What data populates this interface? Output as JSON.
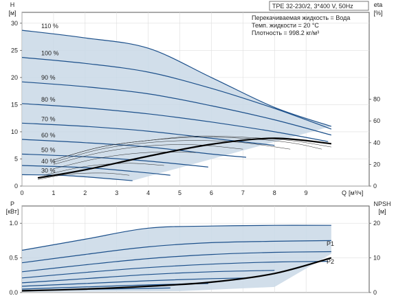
{
  "chart_data": [
    {
      "type": "line",
      "title": "TPE 32-230/2, 3*400 V, 50Hz",
      "info_lines": [
        "Перекачиваемая жидкость = Вода",
        "Темп. жидкости = 20 °C",
        "Плотность = 998.2 кг/м³"
      ],
      "ylabel": "H",
      "yunit": "[м]",
      "y2label": "eta",
      "y2unit": "[%]",
      "xlabel": "Q",
      "xunit": "[м³/ч]",
      "xlim": [
        0,
        11
      ],
      "ylim": [
        0,
        32
      ],
      "y2lim": [
        0,
        160
      ],
      "xticks": [
        "0",
        "1",
        "2",
        "3",
        "4",
        "5",
        "6",
        "7",
        "8",
        "9"
      ],
      "yticks": [
        "0",
        "5",
        "10",
        "15",
        "20",
        "25",
        "30"
      ],
      "y2ticks": [
        "0",
        "20",
        "40",
        "60",
        "80"
      ],
      "grid": true,
      "speed_curves": [
        {
          "label": "110 %",
          "points": [
            [
              0,
              28.7
            ],
            [
              2,
              27.3
            ],
            [
              4,
              25.4
            ],
            [
              6,
              20.0
            ],
            [
              8,
              14.5
            ],
            [
              9.8,
              11.0
            ]
          ]
        },
        {
          "label": "100 %",
          "points": [
            [
              0,
              23.7
            ],
            [
              2,
              22.6
            ],
            [
              4,
              21.0
            ],
            [
              6,
              18.0
            ],
            [
              8,
              14.3
            ],
            [
              9.8,
              10.5
            ]
          ]
        },
        {
          "label": "90 %",
          "points": [
            [
              0,
              19.2
            ],
            [
              2,
              18.3
            ],
            [
              4,
              17.0
            ],
            [
              6,
              14.8
            ],
            [
              8,
              12.2
            ],
            [
              9.8,
              9.4
            ]
          ]
        },
        {
          "label": "80 %",
          "points": [
            [
              0,
              15.2
            ],
            [
              2,
              14.4
            ],
            [
              4,
              13.3
            ],
            [
              6,
              11.8
            ],
            [
              8,
              10.0
            ],
            [
              9.7,
              8.2
            ]
          ]
        },
        {
          "label": "70 %",
          "points": [
            [
              0,
              11.6
            ],
            [
              2,
              11.0
            ],
            [
              4,
              10.1
            ],
            [
              6,
              8.8
            ],
            [
              8,
              7.5
            ]
          ]
        },
        {
          "label": "60 %",
          "points": [
            [
              0,
              8.6
            ],
            [
              2,
              8.0
            ],
            [
              4,
              7.2
            ],
            [
              6,
              5.9
            ],
            [
              7.1,
              5.3
            ]
          ]
        },
        {
          "label": "50 %",
          "points": [
            [
              0,
              5.9
            ],
            [
              2,
              5.4
            ],
            [
              4,
              4.6
            ],
            [
              5.9,
              3.5
            ]
          ]
        },
        {
          "label": "40 %",
          "points": [
            [
              0,
              3.8
            ],
            [
              2,
              3.4
            ],
            [
              3.5,
              2.7
            ],
            [
              4.7,
              2.0
            ]
          ]
        },
        {
          "label": "30 %",
          "points": [
            [
              0,
              2.1
            ],
            [
              1.5,
              1.9
            ],
            [
              3.5,
              1.0
            ]
          ]
        }
      ],
      "efficiency_curves": [
        {
          "points": [
            [
              1,
              24
            ],
            [
              2.5,
              36
            ],
            [
              4,
              42
            ],
            [
              5.5,
              46
            ],
            [
              7,
              45
            ],
            [
              8.5,
              42
            ],
            [
              9.8,
              36
            ]
          ]
        },
        {
          "points": [
            [
              1,
              24
            ],
            [
              2.5,
              36
            ],
            [
              4,
              42
            ],
            [
              5.5,
              45
            ],
            [
              7,
              44
            ],
            [
              8.5,
              40
            ],
            [
              9.5,
              34
            ]
          ]
        },
        {
          "points": [
            [
              1,
              22
            ],
            [
              2.5,
              34
            ],
            [
              4,
              40
            ],
            [
              5.5,
              42
            ],
            [
              7,
              40
            ],
            [
              8.5,
              34
            ]
          ]
        },
        {
          "points": [
            [
              1,
              20
            ],
            [
              2.5,
              31
            ],
            [
              4,
              37
            ],
            [
              5.5,
              38
            ],
            [
              7,
              34
            ]
          ]
        },
        {
          "points": [
            [
              1,
              16
            ],
            [
              2.5,
              26
            ],
            [
              4,
              31
            ],
            [
              5.5,
              31
            ]
          ]
        },
        {
          "points": [
            [
              0.7,
              10
            ],
            [
              2,
              18
            ],
            [
              3.3,
              21
            ],
            [
              4.5,
              19
            ]
          ]
        },
        {
          "points": [
            [
              0.5,
              6
            ],
            [
              1.5,
              11
            ],
            [
              2.6,
              12
            ],
            [
              3.4,
              10
            ]
          ]
        }
      ],
      "npsh_curve": {
        "points": [
          [
            0.5,
            1.5
          ],
          [
            2,
            3.0
          ],
          [
            4,
            5.5
          ],
          [
            6,
            7.7
          ],
          [
            8,
            8.8
          ],
          [
            9.8,
            7.8
          ]
        ]
      }
    },
    {
      "type": "line",
      "ylabel": "P",
      "yunit": "[кВт]",
      "y2label": "NPSH",
      "y2unit": "[м]",
      "xlim": [
        0,
        11
      ],
      "ylim": [
        0,
        1.25
      ],
      "y2lim": [
        0,
        25
      ],
      "yticks": [
        "0.0",
        "0.5",
        "1.0"
      ],
      "y2ticks": [
        "0",
        "10",
        "20"
      ],
      "grid": true,
      "series_labels": [
        "P1",
        "P2"
      ],
      "power_curves": [
        {
          "label": "P1",
          "points": [
            [
              0,
              0.61
            ],
            [
              2,
              0.77
            ],
            [
              4,
              0.93
            ],
            [
              6,
              0.96
            ],
            [
              8,
              0.97
            ],
            [
              9.8,
              0.97
            ]
          ]
        },
        {
          "label": "P2",
          "points": [
            [
              0,
              0.43
            ],
            [
              2,
              0.55
            ],
            [
              4,
              0.66
            ],
            [
              6,
              0.72
            ],
            [
              8,
              0.74
            ],
            [
              9.8,
              0.75
            ]
          ]
        },
        {
          "points": [
            [
              0,
              0.3
            ],
            [
              2,
              0.4
            ],
            [
              4,
              0.49
            ],
            [
              6,
              0.55
            ],
            [
              8,
              0.58
            ],
            [
              9.8,
              0.59
            ]
          ]
        },
        {
          "points": [
            [
              0,
              0.21
            ],
            [
              2,
              0.29
            ],
            [
              4,
              0.36
            ],
            [
              6,
              0.41
            ],
            [
              8,
              0.44
            ],
            [
              9.7,
              0.45
            ]
          ]
        },
        {
          "points": [
            [
              0,
              0.14
            ],
            [
              2,
              0.2
            ],
            [
              4,
              0.26
            ],
            [
              6,
              0.3
            ],
            [
              8,
              0.32
            ]
          ]
        },
        {
          "points": [
            [
              0,
              0.09
            ],
            [
              2,
              0.13
            ],
            [
              4,
              0.17
            ],
            [
              6,
              0.2
            ],
            [
              7.1,
              0.21
            ]
          ]
        },
        {
          "points": [
            [
              0,
              0.05
            ],
            [
              2,
              0.08
            ],
            [
              4,
              0.11
            ],
            [
              5.9,
              0.13
            ]
          ]
        },
        {
          "points": [
            [
              0,
              0.03
            ],
            [
              2,
              0.045
            ],
            [
              4,
              0.06
            ],
            [
              4.7,
              0.065
            ]
          ]
        }
      ],
      "npsh_curve": {
        "points": [
          [
            0,
            0.5
          ],
          [
            2,
            1.0
          ],
          [
            4,
            1.8
          ],
          [
            6,
            3.0
          ],
          [
            8,
            5.5
          ],
          [
            9.8,
            10.0
          ]
        ]
      }
    }
  ]
}
